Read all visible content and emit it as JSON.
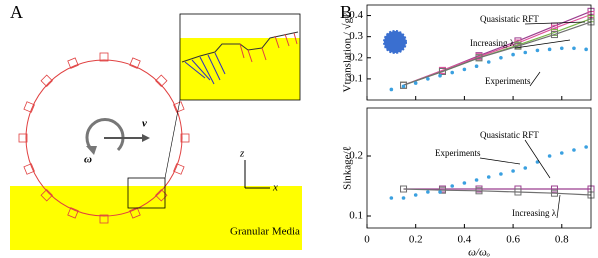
{
  "panel_a": {
    "label": "A",
    "velocity": "v",
    "omega": "ω",
    "axis_z": "z",
    "axis_x": "x",
    "medium": "Granular Media"
  },
  "panel_b": {
    "label": "B"
  },
  "chart_data": [
    {
      "type": "line",
      "ylabel": "Vtranslation / √gℓ",
      "xlim": [
        0,
        0.92
      ],
      "xticks": [
        0,
        0.2,
        0.4,
        0.6,
        0.8
      ],
      "ylim": [
        0,
        0.45
      ],
      "yticks": [
        0.1,
        0.2,
        0.3,
        0.4
      ],
      "series": [
        {
          "name": "Quasistatic RFT",
          "color": "#9b3f8f",
          "mode": "lines+markers",
          "x": [
            0.15,
            0.31,
            0.46,
            0.62,
            0.77,
            0.92
          ],
          "values": [
            0.07,
            0.14,
            0.21,
            0.28,
            0.35,
            0.42
          ]
        },
        {
          "color": "#e0529c",
          "mode": "lines+markers",
          "x": [
            0.15,
            0.31,
            0.46,
            0.62,
            0.77,
            0.92
          ],
          "values": [
            0.07,
            0.14,
            0.205,
            0.27,
            0.34,
            0.405
          ]
        },
        {
          "color": "#7ab648",
          "mode": "lines+markers",
          "x": [
            0.15,
            0.31,
            0.46,
            0.62,
            0.77,
            0.92
          ],
          "values": [
            0.07,
            0.135,
            0.2,
            0.26,
            0.32,
            0.385
          ]
        },
        {
          "color": "#707070",
          "mode": "lines+markers",
          "x": [
            0.15,
            0.31,
            0.46,
            0.62,
            0.77,
            0.92
          ],
          "values": [
            0.07,
            0.135,
            0.2,
            0.255,
            0.31,
            0.37
          ]
        },
        {
          "name": "Experiments",
          "color": "#3aa0e0",
          "mode": "markers",
          "x": [
            0.1,
            0.15,
            0.2,
            0.25,
            0.3,
            0.35,
            0.4,
            0.45,
            0.5,
            0.55,
            0.6,
            0.65,
            0.7,
            0.75,
            0.8,
            0.85,
            0.9
          ],
          "values": [
            0.05,
            0.065,
            0.08,
            0.1,
            0.115,
            0.13,
            0.145,
            0.16,
            0.18,
            0.2,
            0.215,
            0.225,
            0.235,
            0.24,
            0.245,
            0.245,
            0.24
          ]
        }
      ],
      "annotations": [
        "Quasistatic RFT",
        "Increasing λ",
        "Experiments"
      ]
    },
    {
      "type": "line",
      "ylabel": "Sinkage/ℓ",
      "xlabel": "ω/ωₒ",
      "xlim": [
        0,
        0.92
      ],
      "xticks": [
        0,
        0.2,
        0.4,
        0.6,
        0.8
      ],
      "ylim": [
        0.08,
        0.28
      ],
      "yticks": [
        0.1,
        0.2
      ],
      "series": [
        {
          "name": "Quasistatic RFT",
          "color": "#9b3f8f",
          "mode": "lines+markers",
          "x": [
            0.15,
            0.31,
            0.46,
            0.62,
            0.77,
            0.92
          ],
          "values": [
            0.145,
            0.145,
            0.145,
            0.145,
            0.145,
            0.145
          ]
        },
        {
          "color": "#707070",
          "mode": "lines+markers",
          "x": [
            0.15,
            0.31,
            0.46,
            0.62,
            0.77,
            0.92
          ],
          "values": [
            0.145,
            0.143,
            0.142,
            0.14,
            0.138,
            0.135
          ]
        },
        {
          "name": "Experiments",
          "color": "#3aa0e0",
          "mode": "markers",
          "x": [
            0.1,
            0.15,
            0.2,
            0.25,
            0.3,
            0.35,
            0.4,
            0.45,
            0.5,
            0.55,
            0.6,
            0.65,
            0.7,
            0.75,
            0.8,
            0.85,
            0.9
          ],
          "values": [
            0.13,
            0.13,
            0.135,
            0.14,
            0.14,
            0.15,
            0.155,
            0.16,
            0.165,
            0.17,
            0.175,
            0.18,
            0.19,
            0.2,
            0.205,
            0.21,
            0.215
          ]
        }
      ],
      "annotations": [
        "Quasistatic RFT",
        "Experiments",
        "Increasing λ"
      ]
    }
  ]
}
